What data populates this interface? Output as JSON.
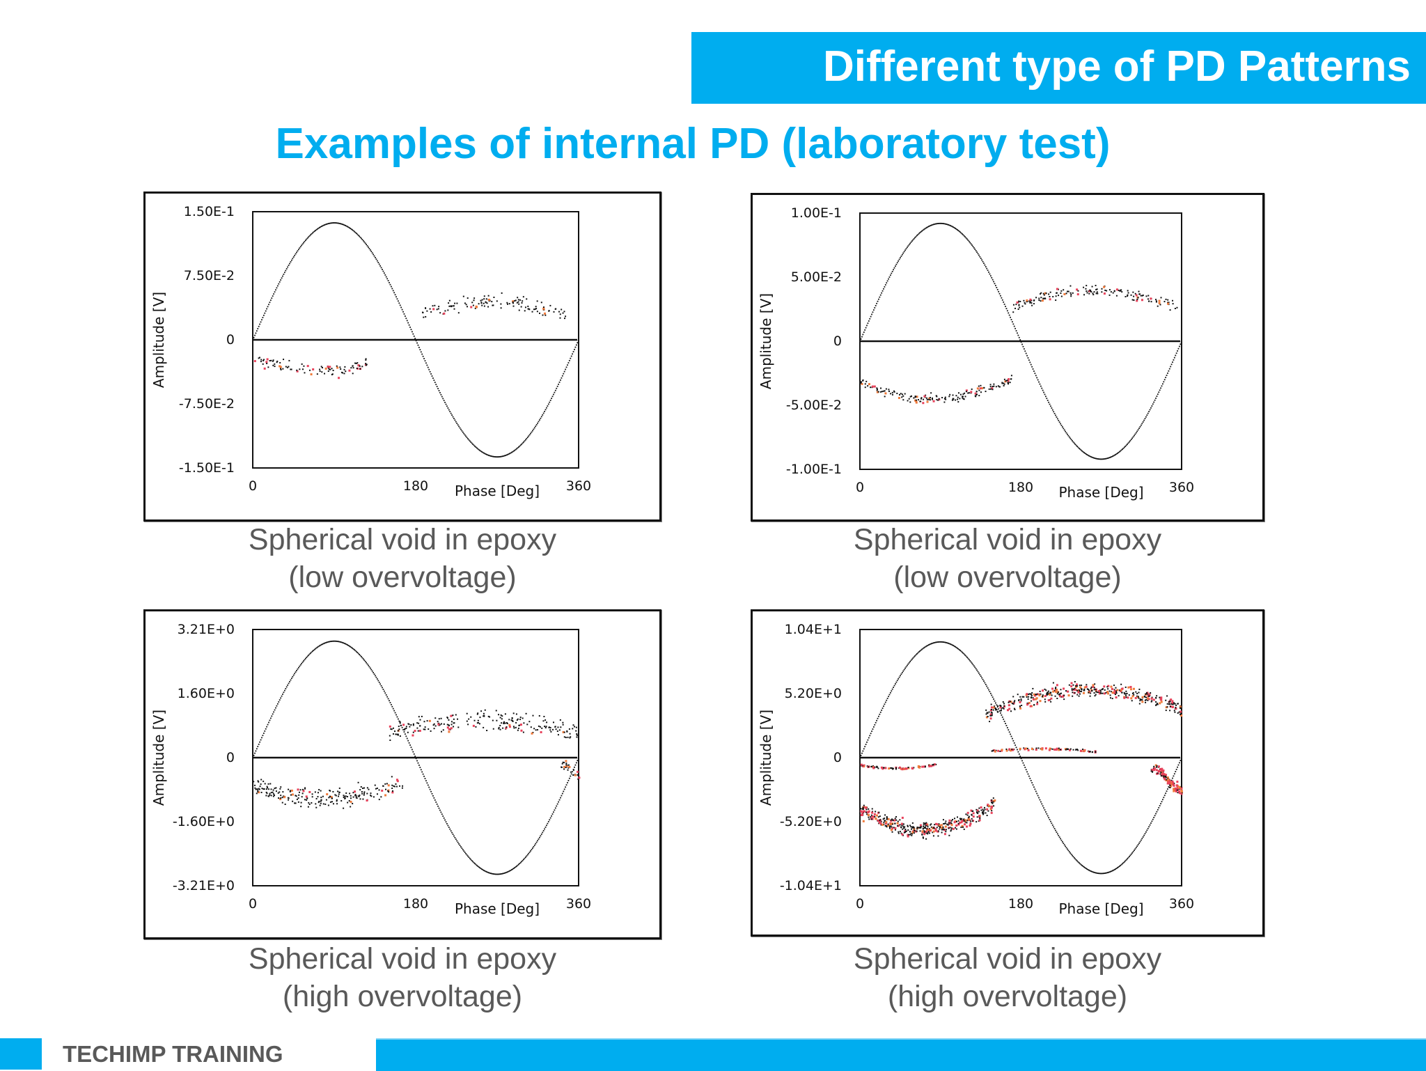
{
  "header": {
    "title": "Different type of PD Patterns",
    "subtitle": "Examples of internal PD (laboratory test)"
  },
  "colors": {
    "accent": "#00adef",
    "caption_text": "#595959",
    "pd_hot": "#e8415a",
    "pd_warm": "#f07a3a",
    "pd_dots": "#111111"
  },
  "panels": [
    {
      "caption_line1": "Spherical void in epoxy",
      "caption_line2": "(low overvoltage)"
    },
    {
      "caption_line1": "Spherical void in epoxy",
      "caption_line2": "(low overvoltage)"
    },
    {
      "caption_line1": "Spherical void in epoxy",
      "caption_line2": "(high overvoltage)"
    },
    {
      "caption_line1": "Spherical void in epoxy",
      "caption_line2": "(high overvoltage)"
    }
  ],
  "footer": {
    "label": "TECHIMP TRAINING"
  },
  "chart_data": [
    {
      "type": "scatter",
      "title": "Spherical void in epoxy (low overvoltage)",
      "xlabel": "Phase [Deg]",
      "ylabel": "Amplitude [V]",
      "xlim": [
        0,
        360
      ],
      "ylim": [
        -0.15,
        0.15
      ],
      "x_ticks": [
        "0",
        "180",
        "360"
      ],
      "y_ticks": [
        "1.50E-1",
        "7.50E-2",
        "0",
        "-7.50E-2",
        "-1.50E-1"
      ],
      "grid": false,
      "reference_sine_amplitude": 0.137,
      "clusters": [
        {
          "name": "positive",
          "phase_range": [
            185,
            345
          ],
          "amp_center": 0.045,
          "peak_phase": 265,
          "spread": 0.012,
          "density": 130,
          "hot_fraction": 0.12
        },
        {
          "name": "negative",
          "phase_range": [
            1,
            128
          ],
          "amp_center": -0.035,
          "peak_phase": 75,
          "spread": 0.01,
          "density": 100,
          "hot_fraction": 0.15
        }
      ]
    },
    {
      "type": "scatter",
      "title": "Spherical void in epoxy (low overvoltage)",
      "xlabel": "Phase [Deg]",
      "ylabel": "Amplitude [V]",
      "xlim": [
        0,
        360
      ],
      "ylim": [
        -0.1,
        0.1
      ],
      "x_ticks": [
        "0",
        "180",
        "360"
      ],
      "y_ticks": [
        "1.00E-1",
        "5.00E-2",
        "0",
        "-5.00E-2",
        "-1.00E-1"
      ],
      "grid": false,
      "reference_sine_amplitude": 0.092,
      "clusters": [
        {
          "name": "positive",
          "phase_range": [
            170,
            355
          ],
          "amp_center": 0.04,
          "peak_phase": 262,
          "spread": 0.006,
          "density": 170,
          "hot_fraction": 0.12
        },
        {
          "name": "negative",
          "phase_range": [
            0,
            170
          ],
          "amp_center": -0.045,
          "peak_phase": 80,
          "spread": 0.006,
          "density": 170,
          "hot_fraction": 0.12
        }
      ]
    },
    {
      "type": "scatter",
      "title": "Spherical void in epoxy (high overvoltage)",
      "xlabel": "Phase [Deg]",
      "ylabel": "Amplitude [V]",
      "xlim": [
        0,
        360
      ],
      "ylim": [
        -3.21,
        3.21
      ],
      "x_ticks": [
        "0",
        "180",
        "360"
      ],
      "y_ticks": [
        "3.21E+0",
        "1.60E+0",
        "0",
        "-1.60E+0",
        "-3.21E+0"
      ],
      "grid": false,
      "reference_sine_amplitude": 2.92,
      "clusters": [
        {
          "name": "positive",
          "phase_range": [
            150,
            358
          ],
          "amp_center": 0.95,
          "peak_phase": 255,
          "spread": 0.35,
          "density": 230,
          "hot_fraction": 0.08
        },
        {
          "name": "negative",
          "phase_range": [
            0,
            165
          ],
          "amp_center": -1.0,
          "peak_phase": 75,
          "spread": 0.35,
          "density": 230,
          "hot_fraction": 0.08
        },
        {
          "name": "negative-tail",
          "phase_range": [
            340,
            360
          ],
          "amp_center": -0.45,
          "peak_phase": 360,
          "spread": 0.15,
          "density": 30,
          "hot_fraction": 0.15
        }
      ]
    },
    {
      "type": "scatter",
      "title": "Spherical void in epoxy (high overvoltage)",
      "xlabel": "Phase [Deg]",
      "ylabel": "Amplitude [V]",
      "xlim": [
        0,
        360
      ],
      "ylim": [
        -10.4,
        10.4
      ],
      "x_ticks": [
        "0",
        "180",
        "360"
      ],
      "y_ticks": [
        "1.04E+1",
        "5.20E+0",
        "0",
        "-5.20E+0",
        "-1.04E+1"
      ],
      "grid": false,
      "reference_sine_amplitude": 9.4,
      "clusters": [
        {
          "name": "positive",
          "phase_range": [
            140,
            360
          ],
          "amp_center": 5.6,
          "peak_phase": 255,
          "spread": 0.9,
          "density": 420,
          "hot_fraction": 0.3
        },
        {
          "name": "positive-flat",
          "phase_range": [
            145,
            265
          ],
          "amp_center": 0.8,
          "peak_phase": 200,
          "spread": 0.12,
          "density": 80,
          "hot_fraction": 0.5
        },
        {
          "name": "negative",
          "phase_range": [
            0,
            150
          ],
          "amp_center": -5.8,
          "peak_phase": 70,
          "spread": 0.9,
          "density": 420,
          "hot_fraction": 0.3
        },
        {
          "name": "negative-flat",
          "phase_range": [
            0,
            85
          ],
          "amp_center": -0.8,
          "peak_phase": 40,
          "spread": 0.12,
          "density": 80,
          "hot_fraction": 0.5
        },
        {
          "name": "negative-tail",
          "phase_range": [
            325,
            360
          ],
          "amp_center": -2.5,
          "peak_phase": 360,
          "spread": 0.6,
          "density": 120,
          "hot_fraction": 0.6
        }
      ]
    }
  ]
}
